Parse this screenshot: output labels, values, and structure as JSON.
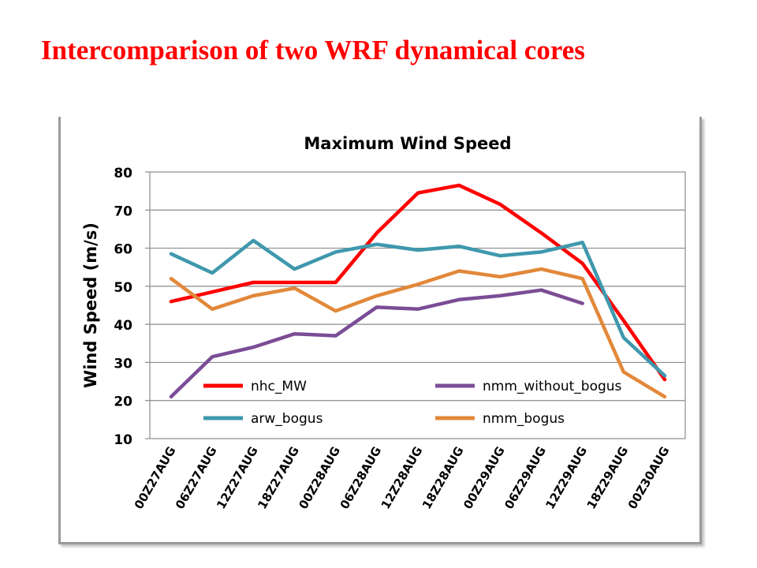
{
  "slide": {
    "title": "Intercomparison of two WRF dynamical cores"
  },
  "chart_data": {
    "type": "line",
    "title": "Maximum Wind Speed",
    "xlabel": "",
    "ylabel": "Wind Speed (m/s)",
    "ylim": [
      10,
      80
    ],
    "yticks": [
      10,
      20,
      30,
      40,
      50,
      60,
      70,
      80
    ],
    "grid": true,
    "legend_position": "inside-bottom",
    "categories": [
      "00Z27AUG",
      "06Z27AUG",
      "12Z27AUG",
      "18Z27AUG",
      "00Z28AUG",
      "06Z28AUG",
      "12Z28AUG",
      "18Z28AUG",
      "00Z29AUG",
      "06Z29AUG",
      "12Z29AUG",
      "18Z29AUG",
      "00Z30AUG"
    ],
    "series": [
      {
        "name": "nhc_MW",
        "color": "#ff0000",
        "values": [
          46,
          48.5,
          51,
          51,
          51,
          64,
          74.5,
          76.5,
          71.5,
          64,
          56,
          41,
          25.5
        ]
      },
      {
        "name": "nmm_without_bogus",
        "color": "#7b4d96",
        "values": [
          21,
          31.5,
          34,
          37.5,
          37,
          44.5,
          44,
          46.5,
          47.5,
          49,
          45.5,
          null,
          null
        ]
      },
      {
        "name": "arw_bogus",
        "color": "#3f98ad",
        "values": [
          58.5,
          53.5,
          62,
          54.5,
          59,
          61,
          59.5,
          60.5,
          58,
          59,
          61.5,
          36.5,
          26.5
        ]
      },
      {
        "name": "nmm_bogus",
        "color": "#e2883a",
        "values": [
          52,
          44,
          47.5,
          49.5,
          43.5,
          47.5,
          50.5,
          54,
          52.5,
          54.5,
          52,
          27.5,
          21
        ]
      }
    ],
    "legend_order": [
      "nhc_MW",
      "nmm_without_bogus",
      "arw_bogus",
      "nmm_bogus"
    ]
  }
}
